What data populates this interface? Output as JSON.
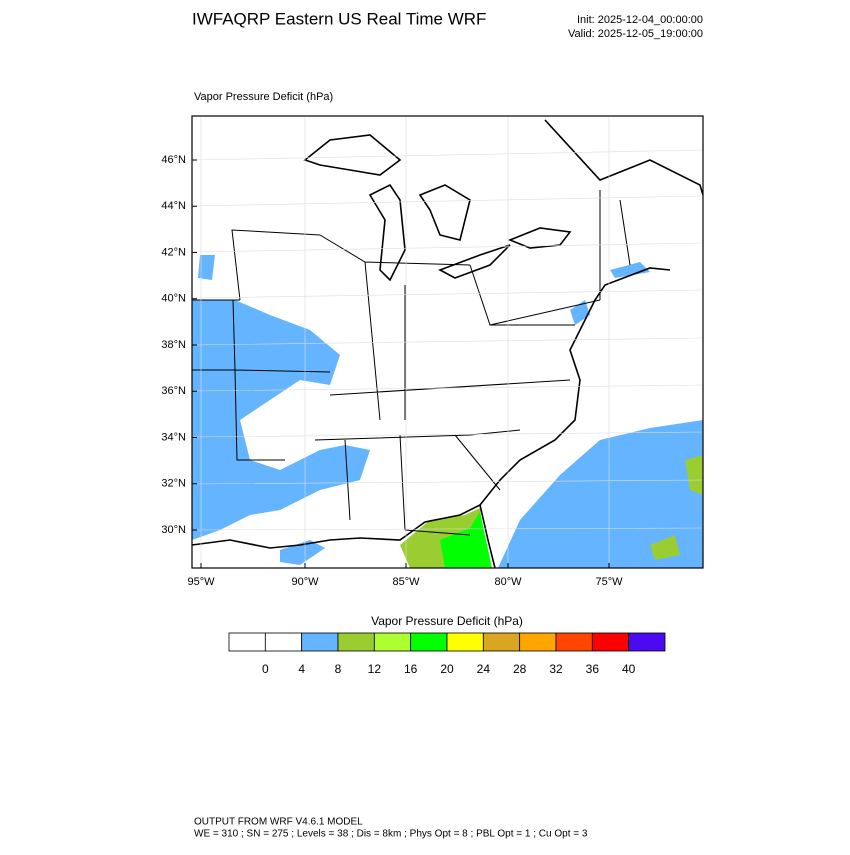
{
  "header": {
    "title": "IWFAQRP Eastern US Real Time WRF",
    "init": "Init: 2025-12-04_00:00:00",
    "valid": "Valid: 2025-12-05_19:00:00"
  },
  "map": {
    "title": "Vapor Pressure Deficit   (hPa)",
    "lat_labels": [
      "46°N",
      "44°N",
      "42°N",
      "40°N",
      "38°N",
      "36°N",
      "34°N",
      "32°N",
      "30°N"
    ],
    "lon_labels": [
      "95°W",
      "90°W",
      "85°W",
      "80°W",
      "75°W"
    ]
  },
  "colorbar": {
    "title": "Vapor Pressure Deficit  (hPa)",
    "ticks": [
      0,
      4,
      8,
      12,
      16,
      20,
      24,
      28,
      32,
      36,
      40
    ],
    "colors": [
      "#ffffff",
      "#ffffff",
      "#64b4ff",
      "#9acd32",
      "#adff2f",
      "#00ff00",
      "#ffff00",
      "#daa520",
      "#ffa500",
      "#ff4500",
      "#ff0000",
      "#4b0af0"
    ]
  },
  "footer": {
    "line1": "OUTPUT FROM WRF V4.6.1 MODEL",
    "line2": "WE = 310 ; SN = 275 ; Levels = 38 ; Dis = 8km ; Phys Opt = 8 ; PBL Opt = 1 ; Cu Opt = 3"
  }
}
